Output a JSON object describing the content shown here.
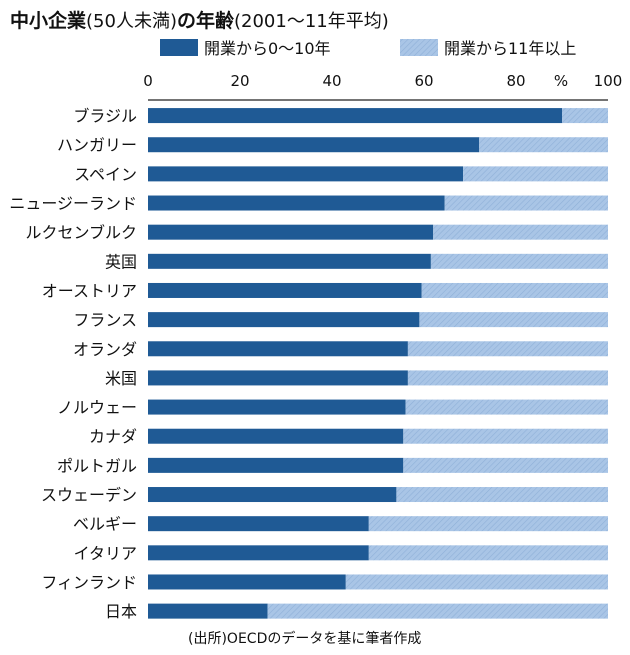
{
  "chart_data": {
    "type": "bar",
    "orientation": "horizontal",
    "stacked": true,
    "title": "中小企業",
    "title_paren": "(50人未満)",
    "title_tail": "の年齢",
    "subtitle": "(2001〜11年平均)",
    "unit_label": "%",
    "source": "(出所)OECDのデータを基に筆者作成",
    "xlim": [
      0,
      100
    ],
    "x_ticks": [
      "0",
      "20",
      "40",
      "60",
      "80",
      "100"
    ],
    "legend_position": "top",
    "grid": false,
    "categories": [
      "ブラジル",
      "ハンガリー",
      "スペイン",
      "ニュージーランド",
      "ルクセンブルク",
      "英国",
      "オーストリア",
      "フランス",
      "オランダ",
      "米国",
      "ノルウェー",
      "カナダ",
      "ポルトガル",
      "スウェーデン",
      "ベルギー",
      "イタリア",
      "フィンランド",
      "日本"
    ],
    "series": [
      {
        "name": "開業から0〜10年",
        "color": "#1f5a95",
        "values": [
          90,
          72,
          68.5,
          64.5,
          62,
          61.5,
          59.5,
          59,
          56.5,
          56.5,
          56,
          55.5,
          55.5,
          54,
          48,
          48,
          43,
          26
        ]
      },
      {
        "name": "開業から11年以上",
        "color": "#a7c3e4",
        "values": [
          10,
          28,
          31.5,
          35.5,
          38,
          38.5,
          40.5,
          41,
          43.5,
          43.5,
          44,
          44.5,
          44.5,
          46,
          52,
          52,
          57,
          74
        ]
      }
    ]
  }
}
